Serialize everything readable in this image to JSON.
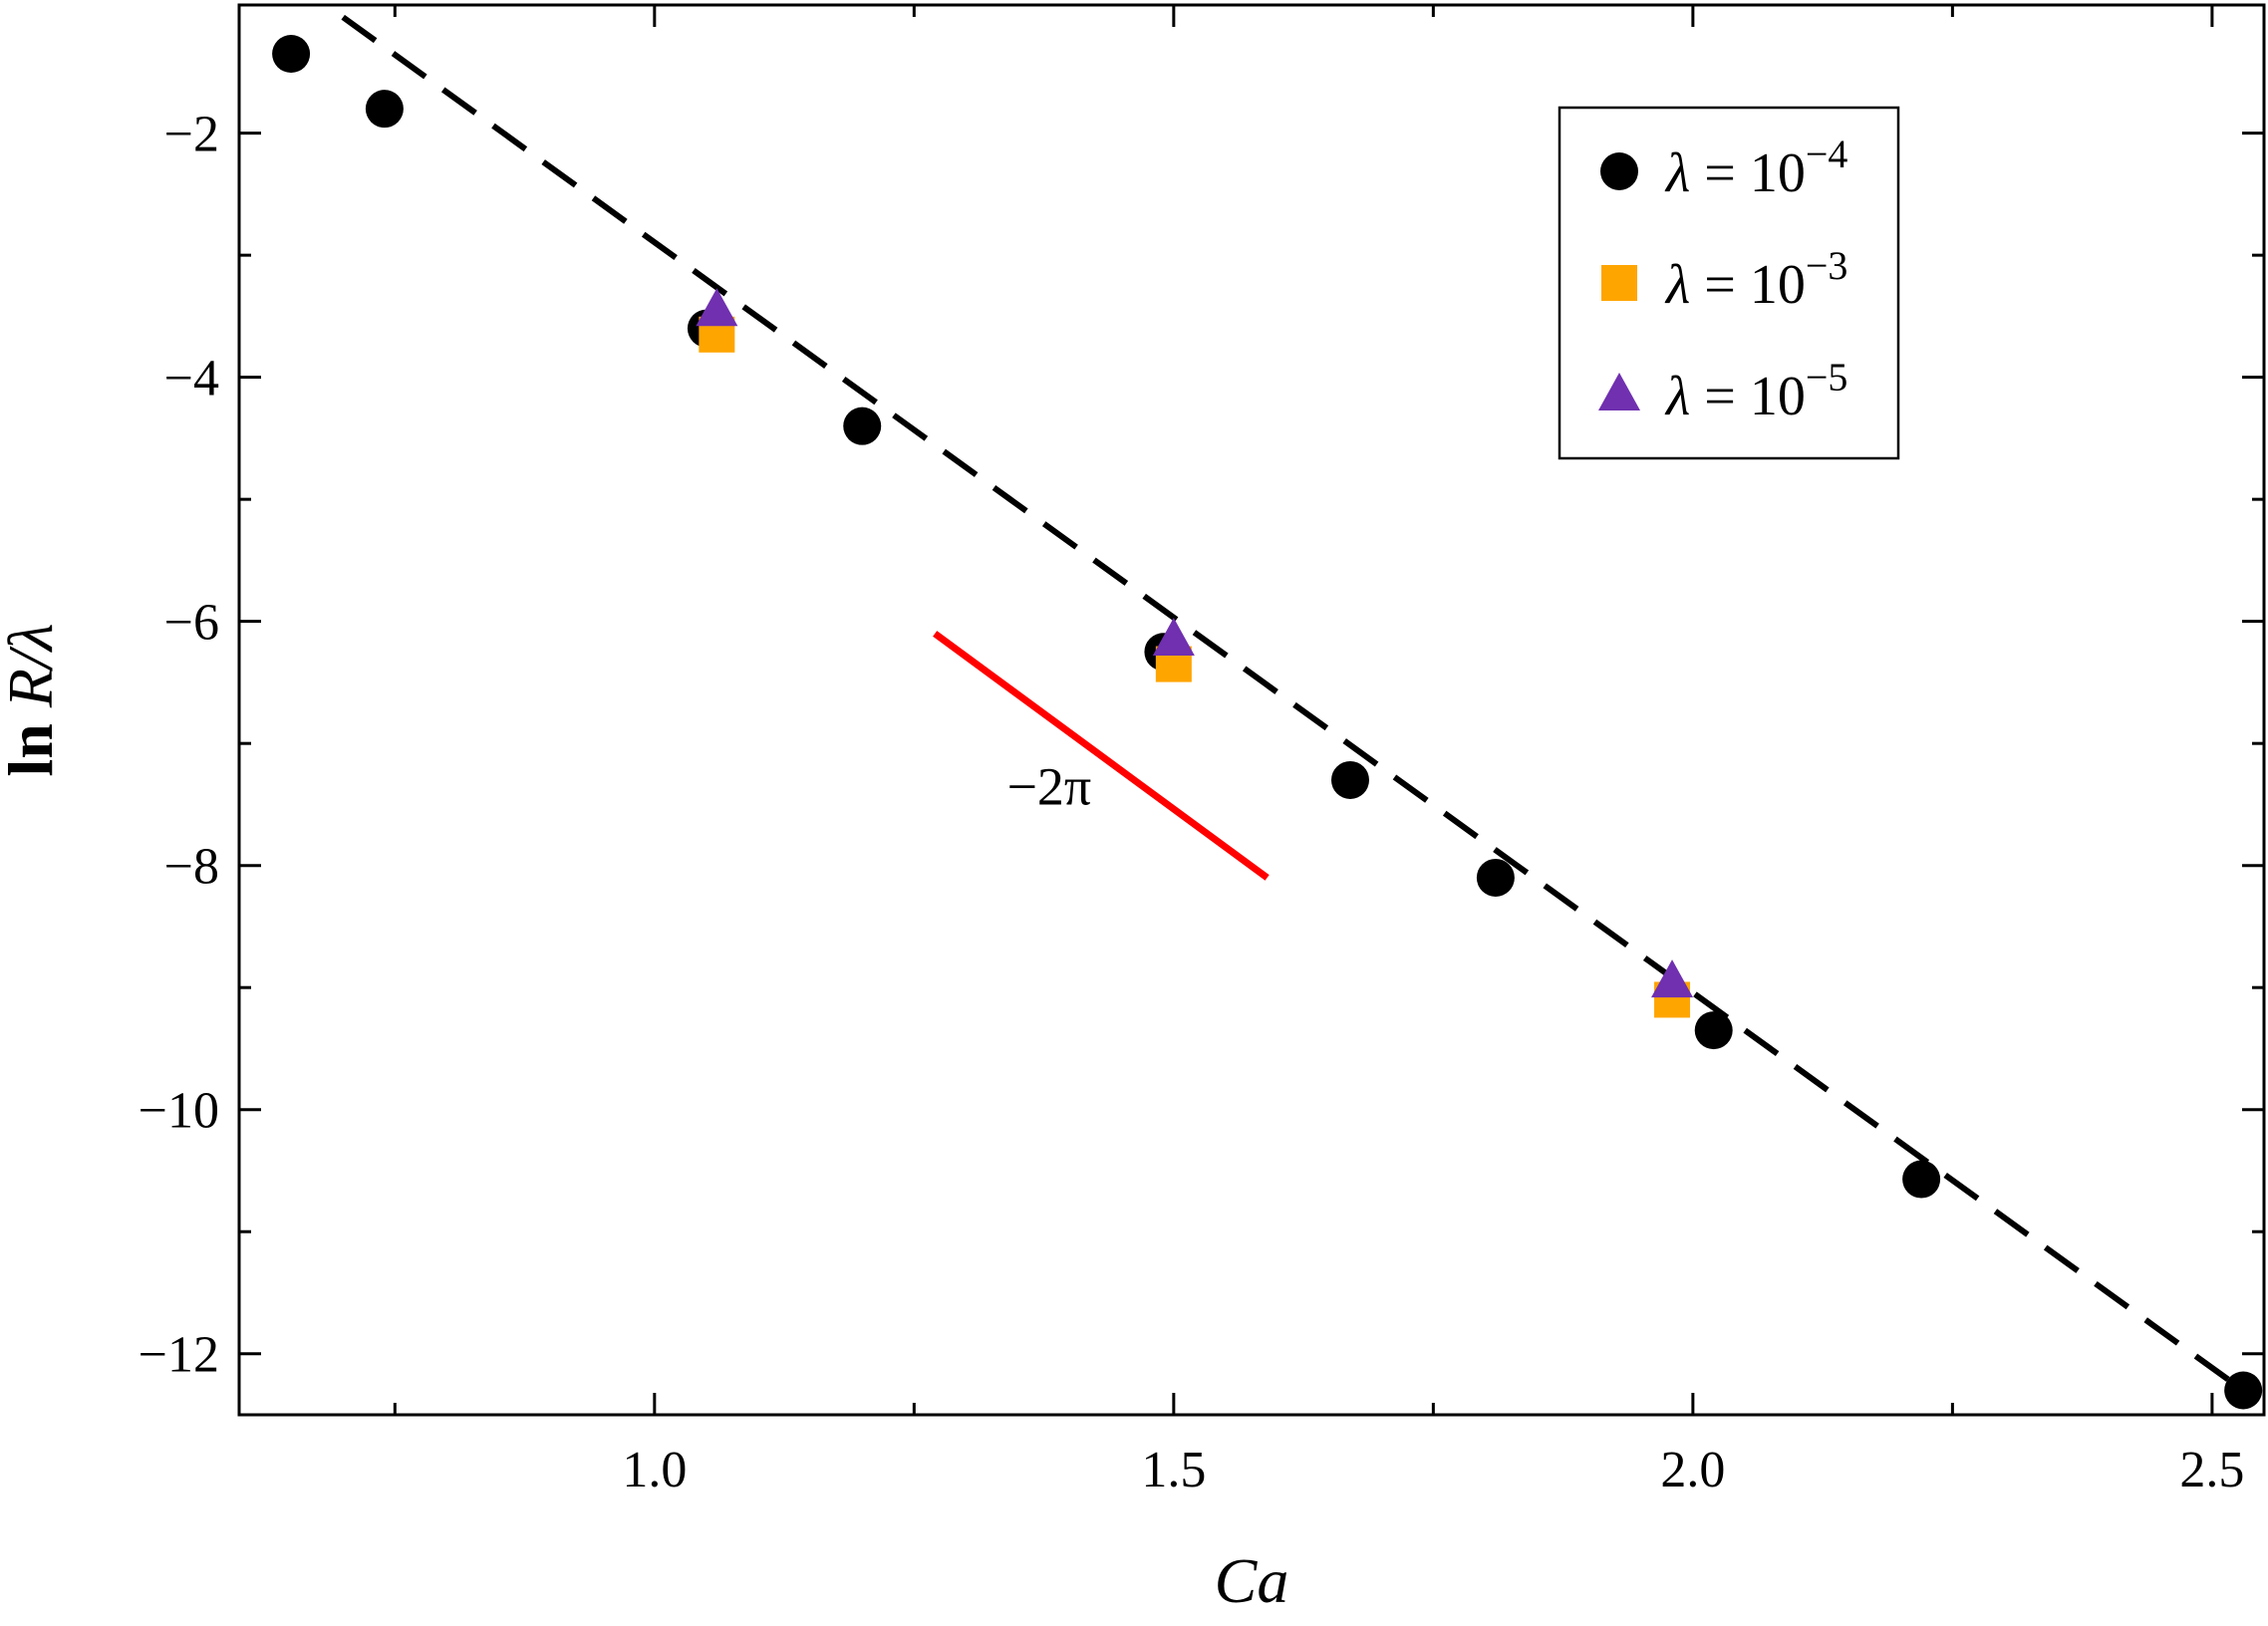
{
  "chart_data": {
    "type": "scatter",
    "xlabel": "Ca",
    "ylabel": "ln R/λ",
    "xlim": [
      0.6,
      2.55
    ],
    "ylim": [
      -12.5,
      -0.95
    ],
    "x_ticks": [
      1.0,
      1.5,
      2.0,
      2.5
    ],
    "x_tick_labels": [
      "1.0",
      "1.5",
      "2.0",
      "2.5"
    ],
    "x_minor_ticks": [
      0.75,
      1.25,
      1.75,
      2.25
    ],
    "y_ticks": [
      -2,
      -4,
      -6,
      -8,
      -10,
      -12
    ],
    "y_tick_labels": [
      "−2",
      "−4",
      "−6",
      "−8",
      "−10",
      "−12"
    ],
    "y_minor_ticks": [
      -3,
      -5,
      -7,
      -9,
      -11
    ],
    "grid": false,
    "legend_position": "top-right",
    "series": [
      {
        "name": "λ = 10⁻⁴",
        "label_base": "λ = 10",
        "label_exp": "−4",
        "marker": "circle",
        "color": "#000000",
        "x": [
          0.65,
          0.74,
          1.05,
          1.2,
          1.49,
          1.67,
          1.81,
          2.02,
          2.22,
          2.53
        ],
        "y": [
          -1.35,
          -1.8,
          -3.6,
          -4.4,
          -6.25,
          -7.3,
          -8.1,
          -9.35,
          -10.57,
          -12.3
        ]
      },
      {
        "name": "λ = 10⁻³",
        "label_base": "λ = 10",
        "label_exp": "−3",
        "marker": "square",
        "color": "#FFA500",
        "x": [
          1.06,
          1.5,
          1.98
        ],
        "y": [
          -3.65,
          -6.35,
          -9.1
        ]
      },
      {
        "name": "λ = 10⁻⁵",
        "label_base": "λ = 10",
        "label_exp": "−5",
        "marker": "triangle",
        "color": "#7030B0",
        "x": [
          1.06,
          1.5,
          1.98
        ],
        "y": [
          -3.45,
          -6.15,
          -8.95
        ]
      }
    ],
    "fit_line": {
      "style": "dashed",
      "color": "#000000",
      "x": [
        0.7,
        2.53
      ],
      "y": [
        -1.05,
        -12.3
      ]
    },
    "slope_line": {
      "color": "#FF0000",
      "x": [
        1.27,
        1.59
      ],
      "y": [
        -6.1,
        -8.1
      ],
      "label": "−2π",
      "label_at": [
        1.38,
        -7.5
      ]
    }
  }
}
